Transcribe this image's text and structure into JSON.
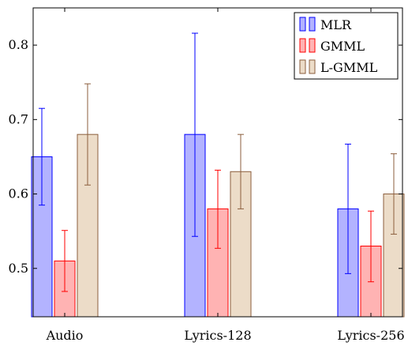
{
  "chart_data": {
    "type": "bar",
    "categories": [
      "Audio",
      "Lyrics-128",
      "Lyrics-256"
    ],
    "series": [
      {
        "name": "MLR",
        "values": [
          0.65,
          0.68,
          0.58
        ],
        "err_low": [
          0.585,
          0.543,
          0.493
        ],
        "err_high": [
          0.715,
          0.816,
          0.667
        ],
        "fill": "#b3b3ff",
        "stroke": "#0000ff"
      },
      {
        "name": "GMML",
        "values": [
          0.51,
          0.58,
          0.53
        ],
        "err_low": [
          0.469,
          0.527,
          0.482
        ],
        "err_high": [
          0.551,
          0.632,
          0.577
        ],
        "fill": "#ffb3b3",
        "stroke": "#ff0000"
      },
      {
        "name": "L-GMML",
        "values": [
          0.68,
          0.63,
          0.6
        ],
        "err_low": [
          0.612,
          0.58,
          0.546
        ],
        "err_high": [
          0.748,
          0.68,
          0.654
        ],
        "fill": "#ecdcc8",
        "stroke": "#8b5e3c"
      }
    ],
    "y_ticks": [
      "0.5",
      "0.6",
      "0.7",
      "0.8"
    ],
    "ylim": [
      0.435,
      0.85
    ],
    "legend_position": "top-right",
    "grid": false
  }
}
